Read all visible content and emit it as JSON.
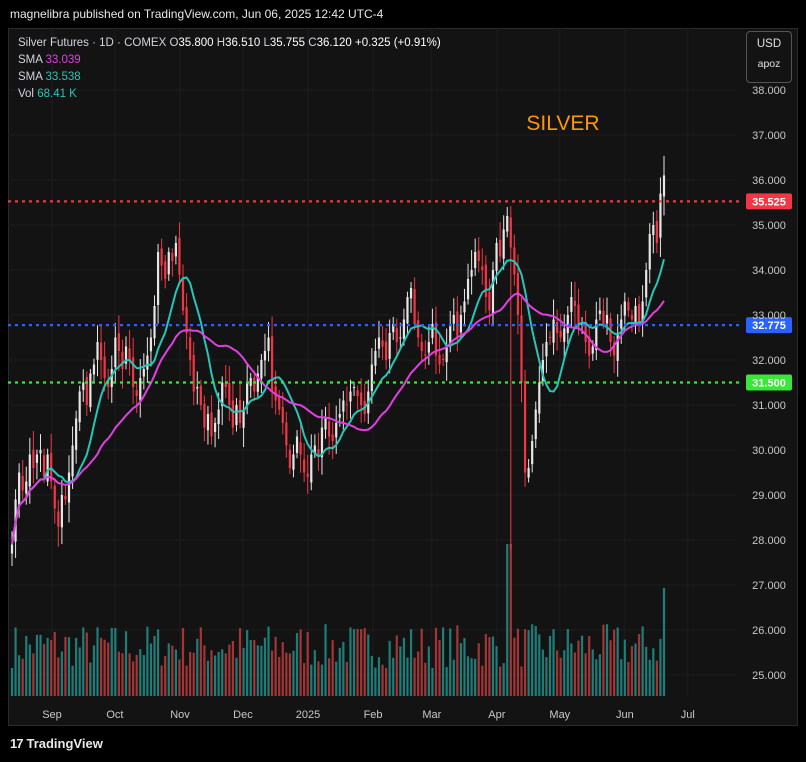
{
  "header": {
    "published": "magnelibra published on TradingView.com, Jun 06, 2025 12:42 UTC-4"
  },
  "legend": {
    "symbol": "Silver Futures · 1D · COMEX",
    "open_k": "O",
    "open": "35.800",
    "high_k": "H",
    "high": "36.510",
    "low_k": "L",
    "low": "35.755",
    "close_k": "C",
    "close": "36.120",
    "change": "+0.325 (+0.91%)",
    "sma1_label": "SMA",
    "sma1_value": "33.039",
    "sma2_label": "SMA",
    "sma2_value": "33.538",
    "vol_label": "Vol",
    "vol_value": "68.41 K"
  },
  "currency": {
    "code": "USD",
    "unit": "apoz"
  },
  "footer": {
    "brand": "TradingView"
  },
  "colors": {
    "up": "#e6e6e6",
    "down": "#f23645",
    "vol_up": "#1f8a84",
    "vol_down": "#b23a3a",
    "sma_fast": "#26c6b9",
    "sma_slow": "#e040e0",
    "line_res": "#f23645",
    "line_mid": "#2962ff",
    "line_sup": "#39e639",
    "annotation": "#ff9800"
  },
  "chart_data": {
    "type": "candlestick",
    "title": "SILVER",
    "ylim": [
      24.5,
      38.9
    ],
    "yticks": [
      "38.000",
      "37.000",
      "36.000",
      "35.000",
      "34.000",
      "33.000",
      "32.000",
      "31.000",
      "30.000",
      "29.000",
      "28.000",
      "27.000",
      "26.000",
      "25.000"
    ],
    "xlabels": [
      {
        "label": "Sep",
        "date": "2024-09-01"
      },
      {
        "label": "Oct",
        "date": "2024-10-01"
      },
      {
        "label": "Nov",
        "date": "2024-11-01"
      },
      {
        "label": "Dec",
        "date": "2024-12-01"
      },
      {
        "label": "2025",
        "date": "2025-01-01"
      },
      {
        "label": "Feb",
        "date": "2025-02-01"
      },
      {
        "label": "Mar",
        "date": "2025-03-01"
      },
      {
        "label": "Apr",
        "date": "2025-04-01"
      },
      {
        "label": "May",
        "date": "2025-05-01"
      },
      {
        "label": "Jun",
        "date": "2025-06-01"
      },
      {
        "label": "Jul",
        "date": "2025-07-01"
      }
    ],
    "levels": [
      {
        "value": 35.525,
        "label": "35.525",
        "color": "#f23645"
      },
      {
        "value": 32.775,
        "label": "32.775",
        "color": "#2962ff"
      },
      {
        "value": 31.5,
        "label": "31.500",
        "color": "#39e639"
      }
    ],
    "close": [
      27.9,
      28.9,
      29.5,
      29.1,
      29.3,
      29.9,
      29.6,
      29.9,
      30.0,
      29.4,
      29.9,
      29.3,
      28.7,
      28.3,
      29.0,
      28.9,
      29.5,
      30.1,
      30.7,
      31.3,
      31.5,
      31.0,
      31.7,
      31.9,
      32.4,
      32.0,
      31.6,
      31.4,
      31.8,
      32.5,
      32.2,
      31.8,
      32.3,
      32.0,
      31.4,
      31.2,
      31.6,
      31.8,
      32.1,
      32.5,
      33.2,
      34.4,
      34.1,
      33.8,
      34.4,
      34.2,
      34.6,
      33.9,
      33.1,
      32.6,
      32.0,
      31.3,
      31.4,
      31.0,
      30.5,
      30.8,
      30.3,
      30.6,
      30.9,
      31.5,
      31.4,
      31.0,
      30.5,
      31.0,
      30.6,
      30.9,
      31.5,
      31.6,
      31.3,
      31.7,
      32.0,
      32.2,
      32.5,
      31.3,
      31.1,
      30.9,
      30.6,
      30.1,
      29.6,
      29.9,
      30.3,
      29.9,
      29.5,
      29.4,
      29.9,
      30.1,
      29.9,
      30.5,
      30.7,
      30.3,
      30.2,
      30.6,
      30.8,
      31.1,
      31.0,
      31.3,
      31.4,
      31.2,
      31.0,
      30.8,
      31.3,
      31.9,
      32.2,
      32.5,
      32.3,
      32.0,
      32.6,
      32.8,
      32.4,
      32.5,
      32.9,
      33.4,
      33.6,
      32.8,
      32.5,
      32.2,
      32.1,
      32.4,
      32.8,
      32.1,
      31.9,
      32.0,
      32.3,
      32.8,
      33.0,
      32.5,
      33.0,
      33.3,
      33.8,
      34.0,
      34.4,
      34.2,
      34.0,
      33.4,
      33.1,
      34.0,
      34.6,
      34.3,
      34.9,
      35.2,
      34.5,
      33.9,
      33.0,
      31.5,
      29.5,
      29.6,
      30.2,
      30.9,
      31.5,
      32.0,
      32.4,
      32.5,
      32.9,
      32.6,
      32.5,
      32.7,
      33.0,
      33.4,
      33.2,
      32.7,
      32.8,
      32.4,
      32.1,
      32.3,
      32.9,
      33.1,
      32.8,
      33.0,
      32.4,
      32.1,
      32.6,
      32.9,
      33.3,
      33.1,
      32.9,
      33.2,
      32.8,
      33.3,
      34.0,
      34.8,
      35.0,
      34.6,
      35.7,
      36.1
    ],
    "sma_fast_last": 33.538,
    "sma_slow_last": 33.039,
    "volume_unit": "K"
  }
}
